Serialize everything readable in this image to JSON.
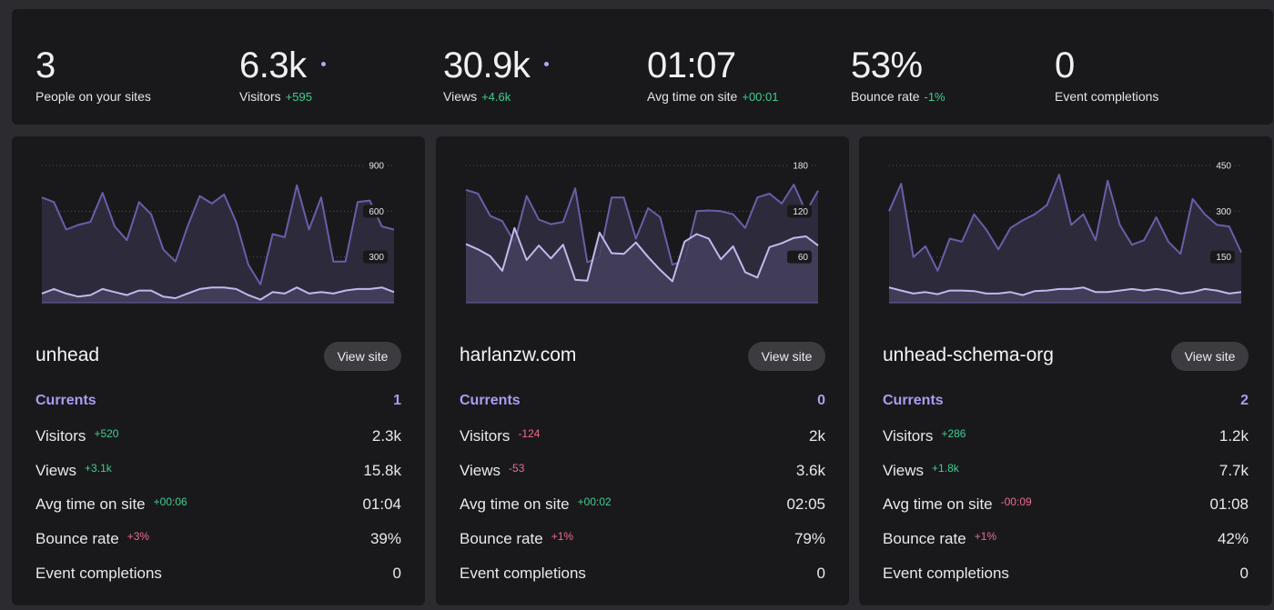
{
  "summary": [
    {
      "value": "3",
      "label": "People on your sites",
      "delta": "",
      "trend": "",
      "dot": false
    },
    {
      "value": "6.3k",
      "label": "Visitors",
      "delta": "+595",
      "trend": "pos",
      "dot": true
    },
    {
      "value": "30.9k",
      "label": "Views",
      "delta": "+4.6k",
      "trend": "pos",
      "dot": true
    },
    {
      "value": "01:07",
      "label": "Avg time on site",
      "delta": "+00:01",
      "trend": "pos",
      "dot": false
    },
    {
      "value": "53%",
      "label": "Bounce rate",
      "delta": "-1%",
      "trend": "pos",
      "dot": false
    },
    {
      "value": "0",
      "label": "Event completions",
      "delta": "",
      "trend": "",
      "dot": false
    }
  ],
  "view_site_label": "View site",
  "colors": {
    "series_views": "#6a5ea8",
    "series_visitors": "#c2b8ec",
    "area_fill": "#2d2a3c",
    "accent": "#a99df0",
    "positive": "#3fcf8e",
    "negative": "#f06a8d"
  },
  "sites": [
    {
      "name": "unhead",
      "metrics": [
        {
          "label": "Currents",
          "value": "1",
          "delta": "",
          "trend": "",
          "current": true
        },
        {
          "label": "Visitors",
          "value": "2.3k",
          "delta": "+520",
          "trend": "pos"
        },
        {
          "label": "Views",
          "value": "15.8k",
          "delta": "+3.1k",
          "trend": "pos"
        },
        {
          "label": "Avg time on site",
          "value": "01:04",
          "delta": "+00:06",
          "trend": "pos"
        },
        {
          "label": "Bounce rate",
          "value": "39%",
          "delta": "+3%",
          "trend": "neg"
        },
        {
          "label": "Event completions",
          "value": "0",
          "delta": "",
          "trend": ""
        }
      ],
      "chart_data": {
        "type": "area",
        "ymax": 900,
        "yticks": [
          {
            "value": 900,
            "label": "900"
          },
          {
            "value": 600,
            "label": "600"
          },
          {
            "value": 300,
            "label": "300"
          }
        ],
        "series": [
          {
            "values": [
              690,
              660,
              480,
              510,
              530,
              720,
              500,
              410,
              660,
              580,
              350,
              270,
              500,
              700,
              650,
              710,
              530,
              250,
              120,
              450,
              430,
              770,
              480,
              690,
              270,
              270,
              660,
              670,
              500,
              480
            ]
          },
          {
            "values": [
              60,
              90,
              60,
              40,
              50,
              90,
              70,
              50,
              80,
              80,
              40,
              30,
              60,
              90,
              100,
              100,
              90,
              50,
              20,
              70,
              60,
              100,
              60,
              70,
              60,
              80,
              90,
              90,
              100,
              70
            ]
          }
        ]
      }
    },
    {
      "name": "harlanzw.com",
      "metrics": [
        {
          "label": "Currents",
          "value": "0",
          "delta": "",
          "trend": "",
          "current": true
        },
        {
          "label": "Visitors",
          "value": "2k",
          "delta": "-124",
          "trend": "neg"
        },
        {
          "label": "Views",
          "value": "3.6k",
          "delta": "-53",
          "trend": "neg"
        },
        {
          "label": "Avg time on site",
          "value": "02:05",
          "delta": "+00:02",
          "trend": "pos"
        },
        {
          "label": "Bounce rate",
          "value": "79%",
          "delta": "+1%",
          "trend": "neg"
        },
        {
          "label": "Event completions",
          "value": "0",
          "delta": "",
          "trend": ""
        }
      ],
      "chart_data": {
        "type": "area",
        "ymax": 180,
        "yticks": [
          {
            "value": 180,
            "label": "180"
          },
          {
            "value": 120,
            "label": "120"
          },
          {
            "value": 60,
            "label": "60"
          }
        ],
        "series": [
          {
            "values": [
              148,
              143,
              114,
              107,
              79,
              140,
              109,
              103,
              106,
              150,
              53,
              60,
              138,
              138,
              84,
              124,
              112,
              50,
              55,
              120,
              121,
              120,
              116,
              98,
              138,
              143,
              130,
              155,
              119,
              147
            ]
          },
          {
            "values": [
              77,
              70,
              61,
              42,
              98,
              56,
              75,
              58,
              76,
              30,
              29,
              92,
              65,
              64,
              79,
              60,
              43,
              28,
              80,
              90,
              84,
              57,
              74,
              40,
              33,
              73,
              78,
              85,
              87,
              75
            ]
          }
        ]
      }
    },
    {
      "name": "unhead-schema-org",
      "metrics": [
        {
          "label": "Currents",
          "value": "2",
          "delta": "",
          "trend": "",
          "current": true
        },
        {
          "label": "Visitors",
          "value": "1.2k",
          "delta": "+286",
          "trend": "pos"
        },
        {
          "label": "Views",
          "value": "7.7k",
          "delta": "+1.8k",
          "trend": "pos"
        },
        {
          "label": "Avg time on site",
          "value": "01:08",
          "delta": "-00:09",
          "trend": "neg"
        },
        {
          "label": "Bounce rate",
          "value": "42%",
          "delta": "+1%",
          "trend": "neg"
        },
        {
          "label": "Event completions",
          "value": "0",
          "delta": "",
          "trend": ""
        }
      ],
      "chart_data": {
        "type": "area",
        "ymax": 450,
        "yticks": [
          {
            "value": 450,
            "label": "450"
          },
          {
            "value": 300,
            "label": "300"
          },
          {
            "value": 150,
            "label": "150"
          }
        ],
        "series": [
          {
            "values": [
              300,
              390,
              150,
              185,
              105,
              210,
              200,
              290,
              240,
              175,
              245,
              270,
              290,
              320,
              420,
              255,
              290,
              205,
              400,
              255,
              190,
              205,
              280,
              200,
              160,
              340,
              290,
              255,
              250,
              165
            ]
          },
          {
            "values": [
              50,
              40,
              30,
              35,
              28,
              40,
              40,
              38,
              30,
              30,
              35,
              25,
              38,
              40,
              45,
              45,
              50,
              35,
              35,
              40,
              45,
              40,
              45,
              40,
              30,
              35,
              45,
              40,
              30,
              35
            ]
          }
        ]
      }
    }
  ]
}
